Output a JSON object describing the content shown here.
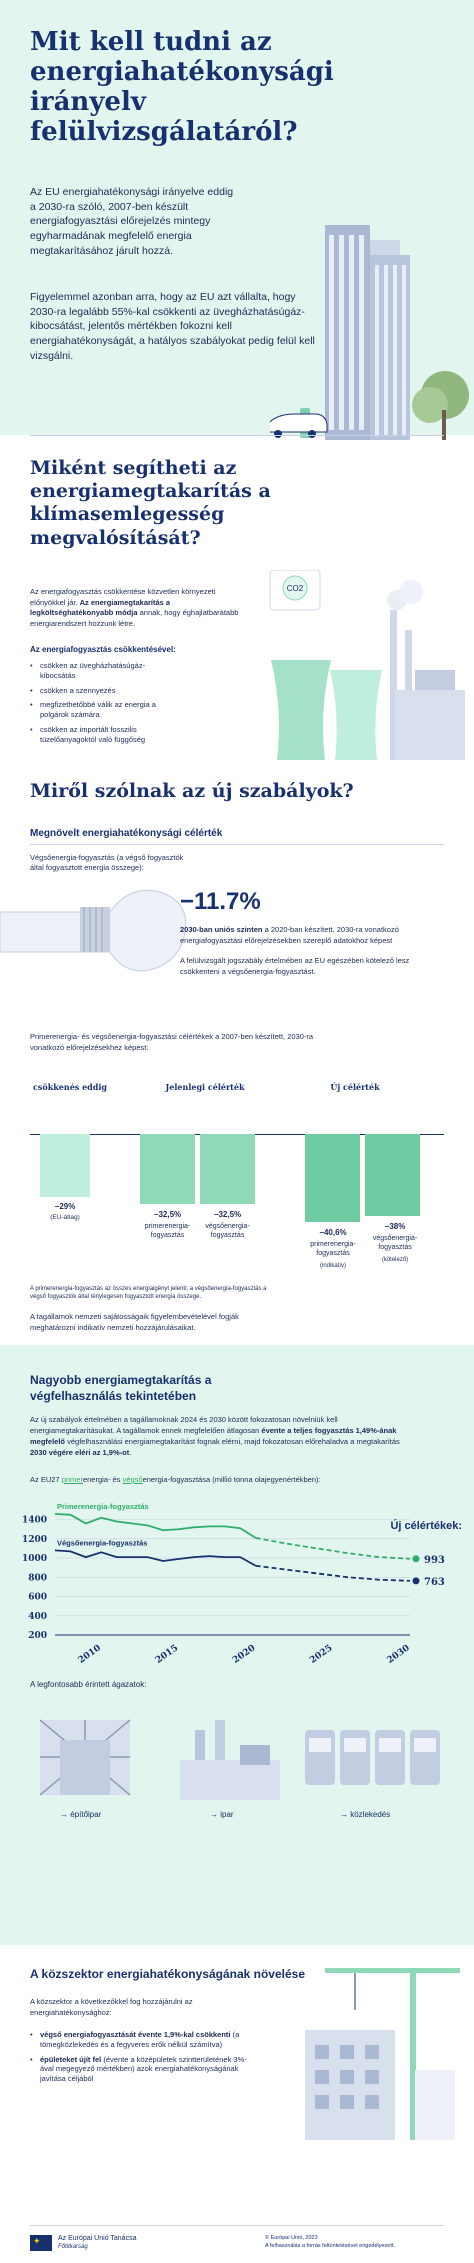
{
  "hero": {
    "title": "Mit kell tudni az energiahatékonysági irányelv felülvizsgálatáról?",
    "p1": "Az EU energiahatékonysági irányelve eddig a 2030-ra szóló, 2007-ben készült energiafogyasztási előrejelzés mintegy egyharmadának megfelelő energia megtakarításához járult hozzá.",
    "p2": "Figyelemmel azonban arra, hogy az EU azt vállalta, hogy 2030-ra legalább 55%-kal csökkenti az üvegházhatásúgáz-kibocsátást, jelentős mértékben fokozni kell energiahatékonyságát, a hatályos szabályokat pedig felül kell vizsgálni."
  },
  "section2": {
    "title": "Miként segítheti az energiamegtakarítás a klímasemlegesség megvalósítását?",
    "intro_pre": "Az energiafogyasztás csökkentése közvetlen környezeti előnyökkel jár. ",
    "intro_bold": "Az energiamegtakarítás a legköltséghatékonyabb módja",
    "intro_post": " annak, hogy éghajlatbarátabb energiarendszert hozzunk létre.",
    "list_title": "Az energiafogyasztás csökkentésével:",
    "bullets": [
      "csökken az üvegházhatásúgáz-kibocsátás",
      "csökken a szennyezés",
      "megfizethetőbbé válik az energia a polgárok számára",
      "csökken az importált fosszilis tüzelőanyagoktól való függőség"
    ],
    "co2_label": "CO2"
  },
  "section3": {
    "title": "Miről szólnak az új szabályok?",
    "subtitle": "Megnövelt energiahatékonysági célérték",
    "bulb_caption": "Végsőenergia-fogyasztás (a végső fogyasztók által fogyasztott energia összege):",
    "big_value": "−11.7%",
    "value_bold": "2030-ban uniós szinten",
    "value_text": " a 2020-ban készített, 2030-ra vonatkozó energiafogyasztási előrejelzésekben szereplő adatokhoz képest",
    "value_note": "A felülvizsgált jogszabály értelmében az EU egészében kötelező lesz csökkenteni a végsőenergia-fogyasztást.",
    "chart_intro": "Primerenergia- és végsőenergia-fogyasztási célértékek a 2007-ben készített, 2030-ra vonatkozó előrejelzésekhez képest:",
    "footnote1": "A primerenergia-fogyasztás az összes energiaigényt jelenti; a végsőenergia-fogyasztás a végső fogyasztók által ténylegesen fogyasztott energia összege.",
    "footnote2": "A tagállamok nemzeti sajátosságaik figyelembevételével fogják meghatározni indikatív nemzeti hozzájárulásaikat."
  },
  "bar_chart": {
    "groups": [
      {
        "label": "csökkenés eddig",
        "bars": [
          {
            "value": "−29%",
            "caption": "(EU-átlag)",
            "tag": ""
          }
        ]
      },
      {
        "label": "Jelenlegi célérték",
        "bars": [
          {
            "value": "−32,5%",
            "caption": "primerenergia-fogyasztás",
            "tag": ""
          },
          {
            "value": "−32,5%",
            "caption": "végsőenergia-fogyasztás",
            "tag": ""
          }
        ]
      },
      {
        "label": "Új célérték",
        "bars": [
          {
            "value": "−40,6%",
            "caption": "primerenergia-fogyasztás",
            "tag": "(indikatív)"
          },
          {
            "value": "−38%",
            "caption": "végsőenergia-fogyasztás",
            "tag": "(kötelező)"
          }
        ]
      }
    ]
  },
  "section4": {
    "title": "Nagyobb energiamegtakarítás a végfelhasználás tekintetében",
    "p1_pre": "Az új szabályok értelmében a tagállamoknak 2024 és 2030 között fokozatosan növelniük kell energiamegtakarításukat. A tagállamok ennek megfelelően átlagosan ",
    "p1_bold1": "évente a teljes fogyasztás 1,49%-ának megfelelő",
    "p1_mid": " végfelhasználási energiamegtakarítást fognak elérni, majd fokozatosan előrehaladva a megtakarítás ",
    "p1_bold2": "2030 végére eléri az 1,9%-ot",
    "p1_end": ".",
    "p2_a": "Az EU27 ",
    "p2_primer": "primer",
    "p2_b": "energia- és ",
    "p2_vegso": "végső",
    "p2_c": "energia-fogyasztása (millió tonna olajegyenértékben):"
  },
  "chart_data": {
    "type": "line",
    "x": [
      2007,
      2008,
      2009,
      2010,
      2011,
      2012,
      2013,
      2014,
      2015,
      2016,
      2017,
      2018,
      2019,
      2020,
      2022,
      2024,
      2026,
      2028,
      2030
    ],
    "series": [
      {
        "name": "Primerenergia-fogyasztás",
        "values": [
          1460,
          1450,
          1360,
          1420,
          1380,
          1360,
          1340,
          1290,
          1300,
          1320,
          1330,
          1330,
          1310,
          1210,
          1150,
          1100,
          1050,
          1010,
          993
        ]
      },
      {
        "name": "Végsőenergia-fogyasztás",
        "values": [
          1080,
          1070,
          1010,
          1060,
          1010,
          1010,
          1010,
          970,
          990,
          1010,
          1020,
          1010,
          1010,
          920,
          880,
          840,
          800,
          775,
          763
        ]
      }
    ],
    "projection_from": 2020,
    "y_ticks": [
      200,
      400,
      600,
      800,
      1000,
      1200,
      1400
    ],
    "x_ticks": [
      2010,
      2015,
      2020,
      2025,
      2030
    ],
    "ylim": [
      200,
      1500
    ],
    "xlim": [
      2007,
      2030
    ],
    "legend_title": "Új célértékek:",
    "end_labels": [
      "993",
      "763"
    ],
    "colors": {
      "primary": "#2fae6b",
      "final": "#17306e"
    }
  },
  "sectors": {
    "title": "A legfontosabb érintett ágazatok:",
    "items": [
      "építőipar",
      "ipar",
      "közlekedés"
    ]
  },
  "section5": {
    "title": "A közszektor energiahatékonyságának növelése",
    "intro": "A közszektor a következőkkel fog hozzájárulni az energiahatékonysághoz:",
    "b1_bold": "végső energiafogyasztását évente 1,9%-kal csökkenti",
    "b1_rest": " (a tömegközlekedés és a fegyveres erők nélkül számítva)",
    "b2_bold": "épületeket újít fel",
    "b2_rest": " (évente a középületek szintterületének 3%-ával megegyező mértékben) azok energiahatékonyságának javítása céljából"
  },
  "footer": {
    "org1": "Az Európai Unió Tanácsa",
    "org2": "Főtitkárság",
    "copy": "© Európai Unió, 2023",
    "license": "A felhasználás a forrás feltüntetésével engedélyezett."
  }
}
